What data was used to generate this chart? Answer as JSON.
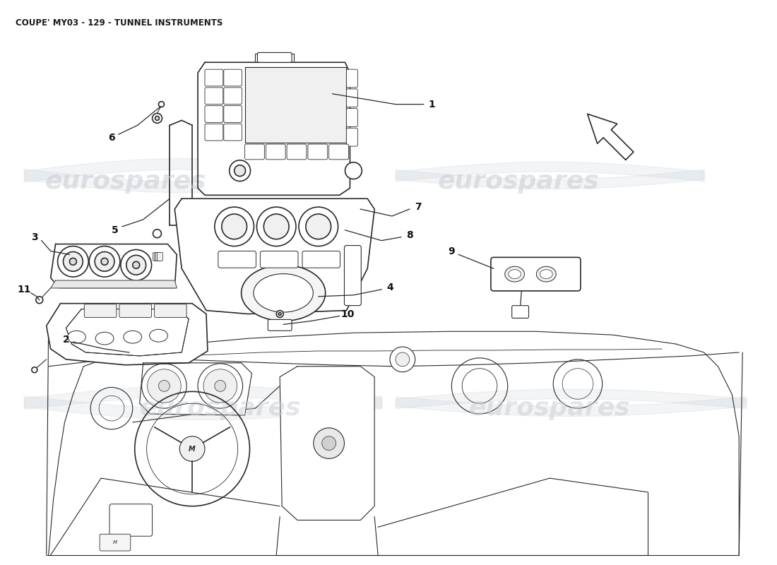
{
  "title": "COUPE' MY03 - 129 - TUNNEL INSTRUMENTS",
  "title_fontsize": 8.5,
  "title_color": "#1a1a1a",
  "bg_color": "#ffffff",
  "line_color": "#2a2a2a",
  "watermark_color": "#c8cdd4",
  "watermark_text": "eurospares",
  "fig_width": 11.0,
  "fig_height": 8.0,
  "dpi": 100
}
